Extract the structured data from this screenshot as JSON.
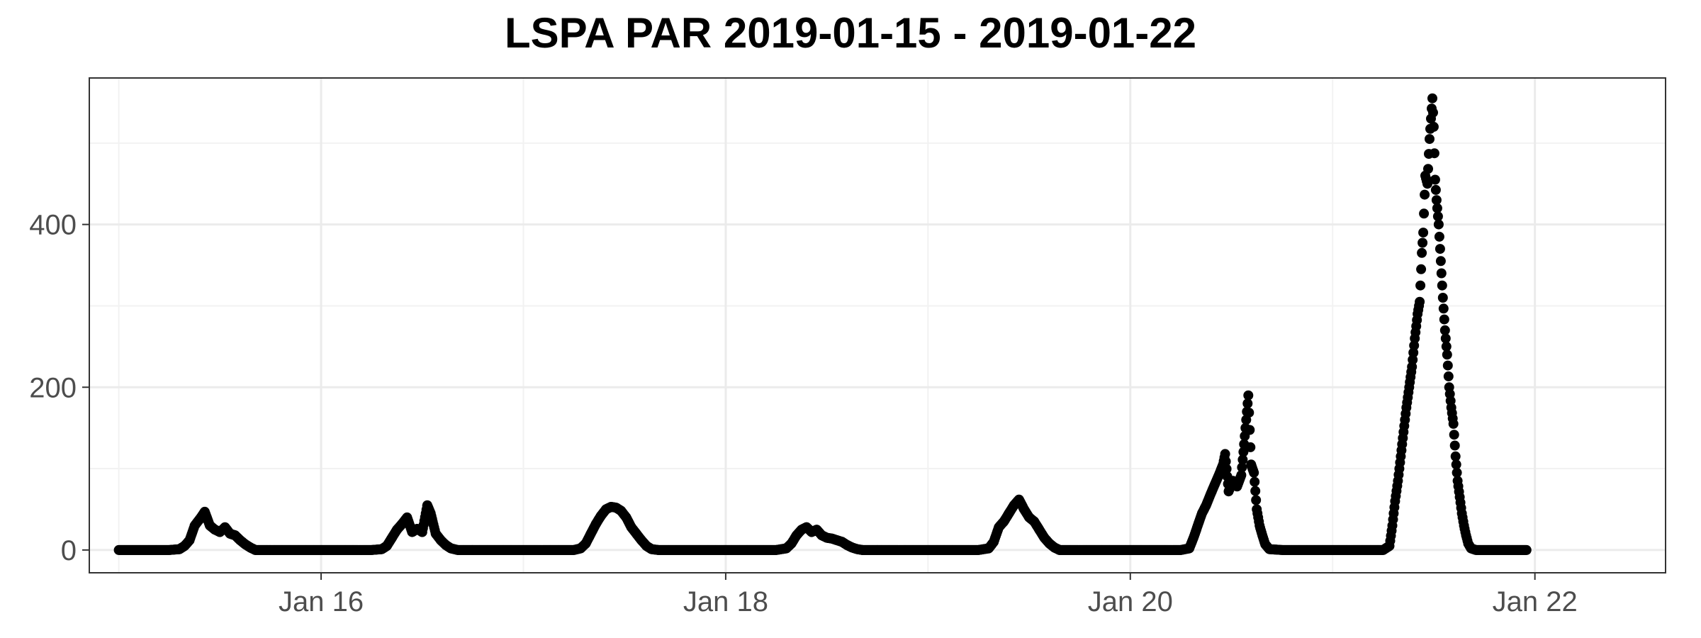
{
  "chart_data": {
    "type": "scatter",
    "title": "LSPA PAR 2019-01-15 - 2019-01-22",
    "xlabel": "",
    "ylabel": "",
    "x_range": [
      "2019-01-14T20:30",
      "2019-01-22T15:30"
    ],
    "ylim": [
      -28,
      580
    ],
    "x_ticks": [
      {
        "label": "Jan 16",
        "date": "2019-01-16"
      },
      {
        "label": "Jan 18",
        "date": "2019-01-18"
      },
      {
        "label": "Jan 20",
        "date": "2019-01-20"
      },
      {
        "label": "Jan 22",
        "date": "2019-01-22"
      }
    ],
    "y_ticks": [
      0,
      200,
      400
    ],
    "grid": true,
    "marker_color": "#000000",
    "series": [
      {
        "points": [
          [
            "2019-01-15T00:00",
            0
          ],
          [
            "2019-01-15T03:00",
            0
          ],
          [
            "2019-01-15T06:00",
            0
          ],
          [
            "2019-01-15T07:12",
            1
          ],
          [
            "2019-01-15T07:48",
            5
          ],
          [
            "2019-01-15T08:24",
            12
          ],
          [
            "2019-01-15T09:00",
            30
          ],
          [
            "2019-01-15T09:36",
            38
          ],
          [
            "2019-01-15T10:12",
            47
          ],
          [
            "2019-01-15T10:48",
            30
          ],
          [
            "2019-01-15T11:24",
            25
          ],
          [
            "2019-01-15T12:00",
            22
          ],
          [
            "2019-01-15T12:36",
            28
          ],
          [
            "2019-01-15T13:12",
            20
          ],
          [
            "2019-01-15T13:48",
            18
          ],
          [
            "2019-01-15T14:24",
            12
          ],
          [
            "2019-01-15T15:00",
            7
          ],
          [
            "2019-01-15T15:36",
            3
          ],
          [
            "2019-01-15T16:12",
            0
          ],
          [
            "2019-01-15T18:00",
            0
          ],
          [
            "2019-01-15T21:00",
            0
          ],
          [
            "2019-01-16T00:00",
            0
          ],
          [
            "2019-01-16T03:00",
            0
          ],
          [
            "2019-01-16T06:00",
            0
          ],
          [
            "2019-01-16T07:12",
            1
          ],
          [
            "2019-01-16T07:48",
            5
          ],
          [
            "2019-01-16T08:24",
            15
          ],
          [
            "2019-01-16T09:00",
            25
          ],
          [
            "2019-01-16T09:36",
            32
          ],
          [
            "2019-01-16T10:12",
            40
          ],
          [
            "2019-01-16T10:48",
            22
          ],
          [
            "2019-01-16T11:24",
            26
          ],
          [
            "2019-01-16T12:00",
            22
          ],
          [
            "2019-01-16T12:36",
            55
          ],
          [
            "2019-01-16T13:00",
            45
          ],
          [
            "2019-01-16T13:36",
            20
          ],
          [
            "2019-01-16T14:12",
            12
          ],
          [
            "2019-01-16T14:48",
            6
          ],
          [
            "2019-01-16T15:24",
            2
          ],
          [
            "2019-01-16T16:12",
            0
          ],
          [
            "2019-01-16T18:00",
            0
          ],
          [
            "2019-01-16T21:00",
            0
          ],
          [
            "2019-01-17T00:00",
            0
          ],
          [
            "2019-01-17T03:00",
            0
          ],
          [
            "2019-01-17T06:00",
            0
          ],
          [
            "2019-01-17T06:48",
            2
          ],
          [
            "2019-01-17T07:24",
            8
          ],
          [
            "2019-01-17T08:00",
            20
          ],
          [
            "2019-01-17T08:36",
            32
          ],
          [
            "2019-01-17T09:12",
            42
          ],
          [
            "2019-01-17T09:48",
            50
          ],
          [
            "2019-01-17T10:24",
            53
          ],
          [
            "2019-01-17T11:00",
            52
          ],
          [
            "2019-01-17T11:36",
            48
          ],
          [
            "2019-01-17T12:12",
            40
          ],
          [
            "2019-01-17T12:48",
            28
          ],
          [
            "2019-01-17T13:24",
            20
          ],
          [
            "2019-01-17T14:00",
            12
          ],
          [
            "2019-01-17T14:36",
            5
          ],
          [
            "2019-01-17T15:12",
            1
          ],
          [
            "2019-01-17T16:00",
            0
          ],
          [
            "2019-01-17T18:00",
            0
          ],
          [
            "2019-01-17T21:00",
            0
          ],
          [
            "2019-01-18T00:00",
            0
          ],
          [
            "2019-01-18T03:00",
            0
          ],
          [
            "2019-01-18T06:00",
            0
          ],
          [
            "2019-01-18T07:12",
            2
          ],
          [
            "2019-01-18T07:48",
            8
          ],
          [
            "2019-01-18T08:24",
            18
          ],
          [
            "2019-01-18T09:00",
            25
          ],
          [
            "2019-01-18T09:36",
            28
          ],
          [
            "2019-01-18T10:12",
            22
          ],
          [
            "2019-01-18T10:48",
            25
          ],
          [
            "2019-01-18T11:24",
            18
          ],
          [
            "2019-01-18T12:00",
            15
          ],
          [
            "2019-01-18T12:36",
            14
          ],
          [
            "2019-01-18T13:12",
            12
          ],
          [
            "2019-01-18T13:48",
            10
          ],
          [
            "2019-01-18T14:24",
            6
          ],
          [
            "2019-01-18T15:00",
            3
          ],
          [
            "2019-01-18T15:36",
            1
          ],
          [
            "2019-01-18T16:12",
            0
          ],
          [
            "2019-01-18T18:00",
            0
          ],
          [
            "2019-01-18T21:00",
            0
          ],
          [
            "2019-01-19T00:00",
            0
          ],
          [
            "2019-01-19T03:00",
            0
          ],
          [
            "2019-01-19T06:00",
            0
          ],
          [
            "2019-01-19T07:12",
            2
          ],
          [
            "2019-01-19T07:48",
            10
          ],
          [
            "2019-01-19T08:24",
            28
          ],
          [
            "2019-01-19T09:00",
            35
          ],
          [
            "2019-01-19T09:36",
            45
          ],
          [
            "2019-01-19T10:12",
            55
          ],
          [
            "2019-01-19T10:48",
            62
          ],
          [
            "2019-01-19T11:24",
            50
          ],
          [
            "2019-01-19T12:00",
            40
          ],
          [
            "2019-01-19T12:36",
            35
          ],
          [
            "2019-01-19T13:12",
            25
          ],
          [
            "2019-01-19T13:48",
            15
          ],
          [
            "2019-01-19T14:24",
            8
          ],
          [
            "2019-01-19T15:00",
            3
          ],
          [
            "2019-01-19T15:36",
            0
          ],
          [
            "2019-01-19T18:00",
            0
          ],
          [
            "2019-01-19T21:00",
            0
          ],
          [
            "2019-01-20T00:00",
            0
          ],
          [
            "2019-01-20T03:00",
            0
          ],
          [
            "2019-01-20T06:00",
            0
          ],
          [
            "2019-01-20T07:00",
            2
          ],
          [
            "2019-01-20T07:30",
            15
          ],
          [
            "2019-01-20T08:00",
            30
          ],
          [
            "2019-01-20T08:30",
            45
          ],
          [
            "2019-01-20T09:00",
            55
          ],
          [
            "2019-01-20T09:30",
            68
          ],
          [
            "2019-01-20T10:00",
            80
          ],
          [
            "2019-01-20T10:30",
            92
          ],
          [
            "2019-01-20T11:00",
            105
          ],
          [
            "2019-01-20T11:15",
            118
          ],
          [
            "2019-01-20T11:40",
            72
          ],
          [
            "2019-01-20T12:10",
            85
          ],
          [
            "2019-01-20T12:40",
            78
          ],
          [
            "2019-01-20T13:10",
            92
          ],
          [
            "2019-01-20T13:30",
            130
          ],
          [
            "2019-01-20T13:45",
            160
          ],
          [
            "2019-01-20T14:00",
            190
          ],
          [
            "2019-01-20T14:20",
            105
          ],
          [
            "2019-01-20T14:40",
            95
          ],
          [
            "2019-01-20T15:00",
            50
          ],
          [
            "2019-01-20T15:20",
            30
          ],
          [
            "2019-01-20T15:40",
            18
          ],
          [
            "2019-01-20T16:00",
            7
          ],
          [
            "2019-01-20T16:30",
            1
          ],
          [
            "2019-01-20T18:00",
            0
          ],
          [
            "2019-01-20T21:00",
            0
          ],
          [
            "2019-01-21T00:00",
            0
          ],
          [
            "2019-01-21T03:00",
            0
          ],
          [
            "2019-01-21T06:00",
            0
          ],
          [
            "2019-01-21T06:45",
            5
          ],
          [
            "2019-01-21T07:05",
            30
          ],
          [
            "2019-01-21T07:25",
            60
          ],
          [
            "2019-01-21T07:45",
            85
          ],
          [
            "2019-01-21T08:05",
            115
          ],
          [
            "2019-01-21T08:25",
            145
          ],
          [
            "2019-01-21T08:45",
            175
          ],
          [
            "2019-01-21T09:05",
            200
          ],
          [
            "2019-01-21T09:25",
            225
          ],
          [
            "2019-01-21T09:45",
            260
          ],
          [
            "2019-01-21T10:05",
            290
          ],
          [
            "2019-01-21T10:20",
            305
          ],
          [
            "2019-01-21T10:35",
            365
          ],
          [
            "2019-01-21T10:45",
            390
          ],
          [
            "2019-01-21T11:00",
            460
          ],
          [
            "2019-01-21T11:15",
            450
          ],
          [
            "2019-01-21T11:30",
            505
          ],
          [
            "2019-01-21T11:40",
            530
          ],
          [
            "2019-01-21T11:50",
            555
          ],
          [
            "2019-01-21T12:00",
            520
          ],
          [
            "2019-01-21T12:10",
            455
          ],
          [
            "2019-01-21T12:20",
            430
          ],
          [
            "2019-01-21T12:35",
            400
          ],
          [
            "2019-01-21T12:50",
            355
          ],
          [
            "2019-01-21T13:05",
            310
          ],
          [
            "2019-01-21T13:20",
            270
          ],
          [
            "2019-01-21T13:35",
            240
          ],
          [
            "2019-01-21T13:50",
            200
          ],
          [
            "2019-01-21T14:05",
            175
          ],
          [
            "2019-01-21T14:20",
            155
          ],
          [
            "2019-01-21T14:35",
            115
          ],
          [
            "2019-01-21T14:50",
            85
          ],
          [
            "2019-01-21T15:05",
            65
          ],
          [
            "2019-01-21T15:20",
            45
          ],
          [
            "2019-01-21T15:35",
            30
          ],
          [
            "2019-01-21T15:50",
            18
          ],
          [
            "2019-01-21T16:05",
            8
          ],
          [
            "2019-01-21T16:25",
            2
          ],
          [
            "2019-01-21T17:00",
            0
          ],
          [
            "2019-01-21T19:00",
            0
          ],
          [
            "2019-01-21T21:00",
            0
          ],
          [
            "2019-01-21T23:00",
            0
          ]
        ]
      }
    ]
  }
}
